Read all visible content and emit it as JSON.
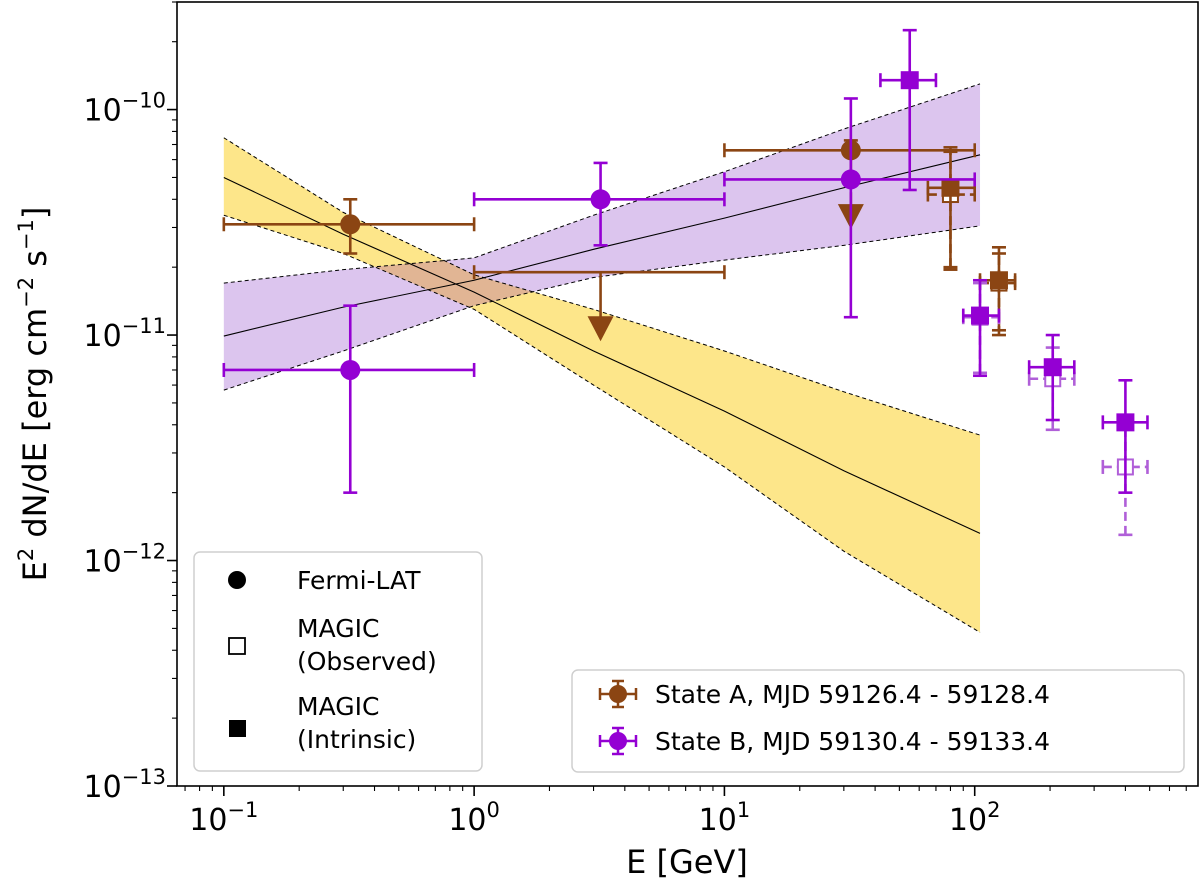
{
  "chart_data": {
    "type": "scatter",
    "title": "",
    "xlabel": "E [GeV]",
    "ylabel_parts": {
      "e": "E",
      "two": "2",
      "dnde": " dN/dE [erg cm",
      "m2": "−2",
      "s": " s",
      "m1": "−1",
      "close": "]"
    },
    "xscale": "log",
    "yscale": "log",
    "xlim": [
      0.065,
      780
    ],
    "ylim": [
      1e-13,
      3e-10
    ],
    "x_ticks": [
      {
        "value": 0.1,
        "base": "10",
        "exp": "−1"
      },
      {
        "value": 1,
        "base": "10",
        "exp": "0"
      },
      {
        "value": 10,
        "base": "10",
        "exp": "1"
      },
      {
        "value": 100,
        "base": "10",
        "exp": "2"
      }
    ],
    "y_ticks": [
      {
        "value": 1e-13,
        "base": "10",
        "exp": "−13"
      },
      {
        "value": 1e-12,
        "base": "10",
        "exp": "−12"
      },
      {
        "value": 1e-11,
        "base": "10",
        "exp": "−11"
      },
      {
        "value": 1e-10,
        "base": "10",
        "exp": "−10"
      }
    ],
    "colors": {
      "state_a": "#8B4513",
      "state_b": "#9400D3",
      "state_b_observed": "#B05FD8",
      "band_a_fill": "#FDE68A",
      "band_b_fill": "#DCC5EE",
      "overlap_fill": "#E1B594"
    },
    "butterflies": [
      {
        "name": "State A Fermi-LAT fit",
        "color_key": "band_a_fill",
        "x": [
          0.1,
          0.3,
          1,
          3,
          10,
          30,
          105
        ],
        "center": [
          5e-11,
          2.8e-11,
          1.55e-11,
          8.5e-12,
          4.6e-12,
          2.5e-12,
          1.32e-12
        ],
        "upper": [
          7.5e-11,
          3.5e-11,
          1.85e-11,
          1.3e-11,
          8.5e-12,
          5.6e-12,
          3.6e-12
        ],
        "lower": [
          3.4e-11,
          2.3e-11,
          1.3e-11,
          6e-12,
          2.6e-12,
          1.1e-12,
          4.8e-13
        ]
      },
      {
        "name": "State B Fermi-LAT fit",
        "color_key": "band_b_fill",
        "x": [
          0.1,
          0.3,
          1,
          3,
          10,
          30,
          105
        ],
        "center": [
          9.9e-12,
          1.33e-11,
          1.75e-11,
          2.4e-11,
          3.3e-11,
          4.5e-11,
          6.3e-11
        ],
        "upper": [
          1.7e-11,
          1.95e-11,
          2.2e-11,
          3.4e-11,
          5.3e-11,
          8.2e-11,
          1.3e-10
        ],
        "lower": [
          5.7e-12,
          8.5e-12,
          1.35e-11,
          1.8e-11,
          2.15e-11,
          2.5e-11,
          3.05e-11
        ]
      }
    ],
    "series": [
      {
        "name": "State A, MJD 59126.4 - 59128.4",
        "color_key": "state_a",
        "fermi_points": [
          {
            "x": 0.32,
            "xlo": 0.1,
            "xhi": 1.0,
            "y": 3.1e-11,
            "ylo": 2.3e-11,
            "yhi": 4e-11
          },
          {
            "x": 32,
            "xlo": 10,
            "xhi": 100,
            "y": 6.6e-11,
            "ylo": 4.7e-11,
            "yhi": 7.3e-11
          }
        ],
        "fermi_upper_limits": [
          {
            "x": 3.2,
            "xlo": 1.0,
            "xhi": 10,
            "y": 1.9e-11,
            "arrow_to": 1.05e-11
          },
          {
            "x": 32,
            "y": 4.3e-11,
            "arrow_to": 3.3e-11
          }
        ],
        "magic_observed": [
          {
            "x": 80,
            "xlo": 65,
            "xhi": 100,
            "y": 4.2e-11,
            "ylo": 2e-11,
            "yhi": 6.5e-11
          },
          {
            "x": 125,
            "xlo": 105,
            "xhi": 145,
            "y": 1.7e-11,
            "ylo": 1e-11,
            "yhi": 2.3e-11
          }
        ],
        "magic_intrinsic": [
          {
            "x": 80,
            "xlo": 65,
            "xhi": 100,
            "y": 4.5e-11,
            "ylo": 1.95e-11,
            "yhi": 6.8e-11
          },
          {
            "x": 125,
            "xlo": 105,
            "xhi": 145,
            "y": 1.75e-11,
            "ylo": 1.05e-11,
            "yhi": 2.45e-11
          }
        ]
      },
      {
        "name": "State B, MJD 59130.4 - 59133.4",
        "color_key": "state_b",
        "observed_color_key": "state_b_observed",
        "fermi_points": [
          {
            "x": 0.32,
            "xlo": 0.1,
            "xhi": 1.0,
            "y": 7e-12,
            "ylo": 2e-12,
            "yhi": 1.35e-11
          },
          {
            "x": 3.2,
            "xlo": 1.0,
            "xhi": 10,
            "y": 4e-11,
            "ylo": 2.5e-11,
            "yhi": 5.8e-11
          },
          {
            "x": 32,
            "xlo": 10,
            "xhi": 100,
            "y": 4.9e-11,
            "ylo": 1.2e-11,
            "yhi": 1.12e-10
          }
        ],
        "magic_observed": [
          {
            "x": 105,
            "xlo": 90,
            "xhi": 125,
            "y": 1.2e-11,
            "ylo": 6.8e-12,
            "yhi": 1.7e-11
          },
          {
            "x": 205,
            "xlo": 165,
            "xhi": 250,
            "y": 6.4e-12,
            "ylo": 3.8e-12,
            "yhi": 8.8e-12
          },
          {
            "x": 400,
            "xlo": 325,
            "xhi": 490,
            "y": 2.6e-12,
            "ylo": 1.3e-12,
            "yhi": 4.4e-12
          }
        ],
        "magic_intrinsic": [
          {
            "x": 55,
            "xlo": 42,
            "xhi": 70,
            "y": 1.35e-10,
            "ylo": 4.4e-11,
            "yhi": 2.25e-10
          },
          {
            "x": 105,
            "xlo": 90,
            "xhi": 125,
            "y": 1.22e-11,
            "ylo": 6.6e-12,
            "yhi": 1.75e-11
          },
          {
            "x": 205,
            "xlo": 165,
            "xhi": 250,
            "y": 7.2e-12,
            "ylo": 4.2e-12,
            "yhi": 1e-11
          },
          {
            "x": 400,
            "xlo": 325,
            "xhi": 490,
            "y": 4.1e-12,
            "ylo": 2e-12,
            "yhi": 6.3e-12
          }
        ]
      }
    ],
    "legend_markers": {
      "fermi": "Fermi-LAT",
      "magic_observed_l1": "MAGIC",
      "magic_observed_l2": "(Observed)",
      "magic_intrinsic_l1": "MAGIC",
      "magic_intrinsic_l2": "(Intrinsic)",
      "placement": "lower-left"
    },
    "legend_states": {
      "state_a": "State A, MJD 59126.4 - 59128.4",
      "state_b": "State B, MJD 59130.4 - 59133.4",
      "placement": "lower-right"
    }
  }
}
